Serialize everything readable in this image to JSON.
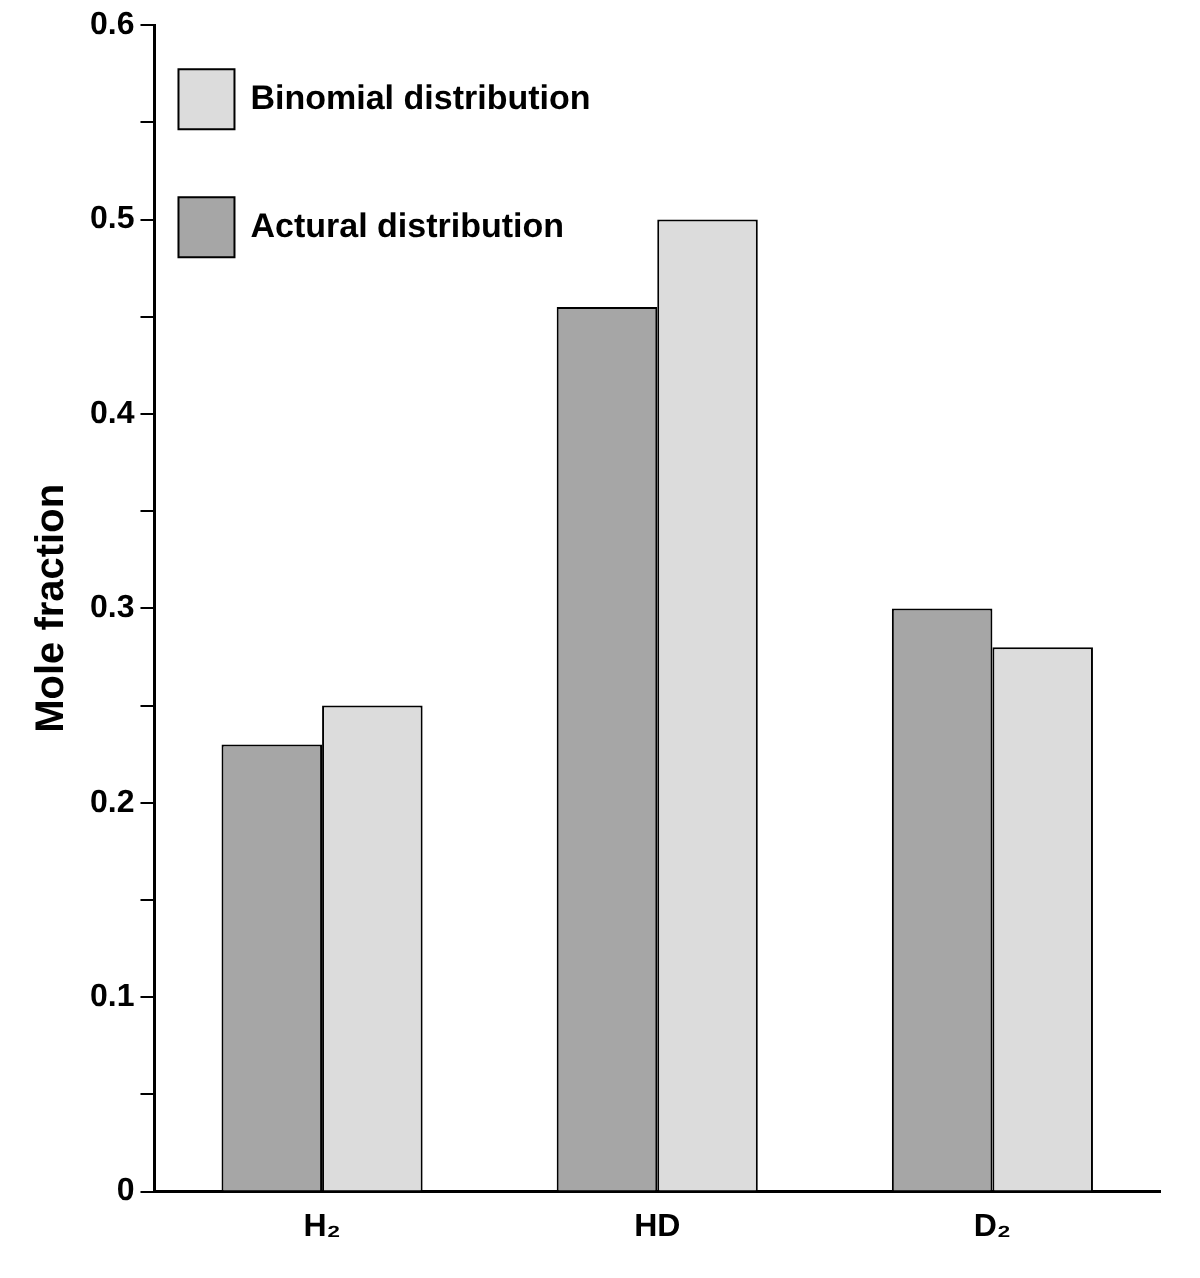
{
  "chart_data": {
    "type": "bar",
    "ylabel": "Mole fraction",
    "categories": [
      "H₂",
      "HD",
      "D₂"
    ],
    "series": [
      {
        "name": "Actural distribution",
        "color": "#a6a6a6",
        "values": [
          0.23,
          0.455,
          0.3
        ]
      },
      {
        "name": "Binomial distribution",
        "color": "#dcdcdc",
        "values": [
          0.25,
          0.5,
          0.28
        ]
      }
    ],
    "ylim": [
      0,
      0.6
    ],
    "yticks": [
      0,
      {
        "value": 0.05,
        "label": null
      },
      0.1,
      {
        "value": 0.15,
        "label": null
      },
      0.2,
      {
        "value": 0.25,
        "label": null
      },
      0.3,
      {
        "value": 0.35,
        "label": null
      },
      0.4,
      {
        "value": 0.45,
        "label": null
      },
      0.5,
      {
        "value": 0.55,
        "label": null
      },
      0.6
    ],
    "grid": false,
    "legend": "top left"
  }
}
